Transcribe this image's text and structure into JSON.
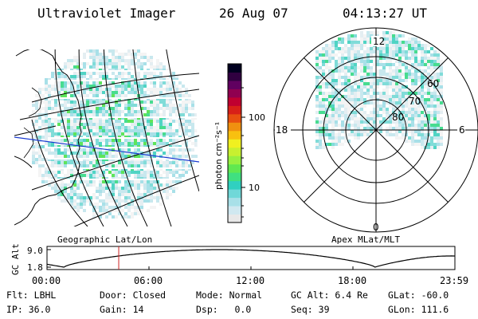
{
  "header": {
    "instrument": "Ultraviolet Imager",
    "date": "26 Aug 07",
    "time": "04:13:27 UT"
  },
  "geo_map": {
    "label": "Geographic Lat/Lon"
  },
  "polar_map": {
    "label": "Apex MLat/MLT",
    "mlt_labels": [
      "12",
      "18",
      "6",
      "0"
    ],
    "mlat_labels": [
      "60",
      "70",
      "80"
    ]
  },
  "colorbar": {
    "unit_label": "photon cm⁻²s⁻¹",
    "tick_labels": [
      "100",
      "10"
    ],
    "colors": [
      "#e8e8e8",
      "#d0e8f0",
      "#a8e0e8",
      "#70d8d8",
      "#30d0c0",
      "#40e080",
      "#60e850",
      "#98f040",
      "#c8f030",
      "#f0f020",
      "#f8c010",
      "#f09010",
      "#e85010",
      "#d82018",
      "#c00030",
      "#900050",
      "#600060",
      "#300040",
      "#000020"
    ]
  },
  "altitude_plot": {
    "ylabel": "GC Alt",
    "y_ticks": [
      "9.0",
      "1.8"
    ],
    "x_ticks": [
      "00:00",
      "06:00",
      "12:00",
      "18:00",
      "23:59"
    ],
    "current_marker_hour": 4.22,
    "marker_color": "#d02020"
  },
  "info": {
    "row1": [
      {
        "key": "Flt:",
        "value": "LBHL"
      },
      {
        "key": "Door:",
        "value": "Closed"
      },
      {
        "key": "Mode:",
        "value": "Normal"
      },
      {
        "key": "GC Alt:",
        "value": "6.4 Re"
      },
      {
        "key": "GLat:",
        "value": "-60.0"
      }
    ],
    "row2": [
      {
        "key": "IP:",
        "value": "36.0"
      },
      {
        "key": "Gain:",
        "value": "14"
      },
      {
        "key": "Dsp:",
        "value": "0.0"
      },
      {
        "key": "Seq:",
        "value": "39"
      },
      {
        "key": "GLon:",
        "value": "111.6"
      }
    ]
  },
  "colors": {
    "terminator": "#1a3ad0",
    "ink": "#000000"
  }
}
